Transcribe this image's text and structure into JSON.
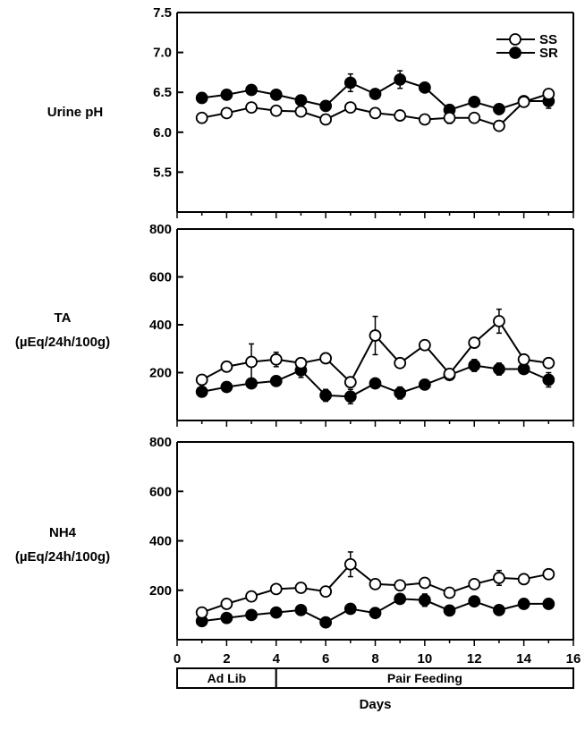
{
  "chart_data": [
    {
      "type": "line",
      "ylabel": [
        "Urine pH"
      ],
      "ylim": [
        5.0,
        7.5
      ],
      "yticks": [
        "7.5",
        "7.0",
        "6.5",
        "6.0",
        "5.5"
      ],
      "ytick_values": [
        7.5,
        7.0,
        6.5,
        6.0,
        5.5
      ],
      "x": [
        1,
        2,
        3,
        4,
        5,
        6,
        7,
        8,
        9,
        10,
        11,
        12,
        13,
        14,
        15
      ],
      "legend": "top-right",
      "series": [
        {
          "name": "SS",
          "marker": "open-circle",
          "values": [
            6.18,
            6.24,
            6.31,
            6.27,
            6.26,
            6.16,
            6.31,
            6.24,
            6.21,
            6.16,
            6.18,
            6.18,
            6.08,
            6.38,
            6.48
          ],
          "errors": [
            0,
            0,
            0,
            0,
            0,
            0,
            0,
            0,
            0,
            0,
            0.07,
            0,
            0,
            0,
            0
          ]
        },
        {
          "name": "SR",
          "marker": "filled-circle",
          "values": [
            6.43,
            6.47,
            6.53,
            6.47,
            6.4,
            6.33,
            6.62,
            6.48,
            6.66,
            6.56,
            6.28,
            6.38,
            6.29,
            6.39,
            6.39
          ],
          "errors": [
            0,
            0,
            0,
            0,
            0,
            0,
            0.11,
            0,
            0.11,
            0.06,
            0,
            0,
            0,
            0,
            0.09
          ]
        }
      ]
    },
    {
      "type": "line",
      "ylabel": [
        "TA",
        "(µEq/24h/100g)"
      ],
      "ylim": [
        0,
        800
      ],
      "yticks": [
        "800",
        "600",
        "400",
        "200"
      ],
      "ytick_values": [
        800,
        600,
        400,
        200
      ],
      "x": [
        1,
        2,
        3,
        4,
        5,
        6,
        7,
        8,
        9,
        10,
        11,
        12,
        13,
        14,
        15
      ],
      "series": [
        {
          "name": "SS",
          "marker": "open-circle",
          "values": [
            170,
            225,
            245,
            255,
            240,
            260,
            160,
            355,
            240,
            315,
            195,
            325,
            415,
            255,
            240
          ],
          "errors": [
            0,
            0,
            75,
            30,
            20,
            0,
            0,
            80,
            0,
            20,
            0,
            0,
            50,
            0,
            0
          ]
        },
        {
          "name": "SR",
          "marker": "filled-circle",
          "values": [
            120,
            140,
            155,
            165,
            210,
            105,
            100,
            155,
            115,
            150,
            190,
            230,
            215,
            215,
            170
          ],
          "errors": [
            0,
            0,
            0,
            0,
            30,
            25,
            30,
            0,
            25,
            20,
            0,
            25,
            25,
            0,
            30
          ]
        }
      ]
    },
    {
      "type": "line",
      "ylabel": [
        "NH4",
        "(µEq/24h/100g)"
      ],
      "ylim": [
        0,
        800
      ],
      "yticks": [
        "800",
        "600",
        "400",
        "200"
      ],
      "ytick_values": [
        800,
        600,
        400,
        200
      ],
      "xlim": [
        0,
        16
      ],
      "xticks": [
        "0",
        "2",
        "4",
        "6",
        "8",
        "10",
        "12",
        "14",
        "16"
      ],
      "xtick_values": [
        0,
        2,
        4,
        6,
        8,
        10,
        12,
        14,
        16
      ],
      "xlabel": "Days",
      "x": [
        1,
        2,
        3,
        4,
        5,
        6,
        7,
        8,
        9,
        10,
        11,
        12,
        13,
        14,
        15
      ],
      "series": [
        {
          "name": "SS",
          "marker": "open-circle",
          "values": [
            110,
            145,
            175,
            205,
            210,
            195,
            305,
            225,
            220,
            230,
            190,
            225,
            250,
            245,
            265
          ],
          "errors": [
            0,
            0,
            0,
            0,
            20,
            0,
            50,
            0,
            0,
            0,
            0,
            0,
            30,
            0,
            0
          ]
        },
        {
          "name": "SR",
          "marker": "filled-circle",
          "values": [
            75,
            88,
            100,
            110,
            120,
            70,
            125,
            108,
            165,
            160,
            118,
            155,
            120,
            145,
            145
          ],
          "errors": [
            0,
            0,
            0,
            0,
            0,
            0,
            0,
            0,
            0,
            25,
            0,
            0,
            0,
            0,
            0
          ]
        }
      ]
    }
  ],
  "phases": [
    {
      "label": "Ad Lib",
      "start": 0,
      "end": 4
    },
    {
      "label": "Pair Feeding",
      "start": 4,
      "end": 16
    }
  ]
}
